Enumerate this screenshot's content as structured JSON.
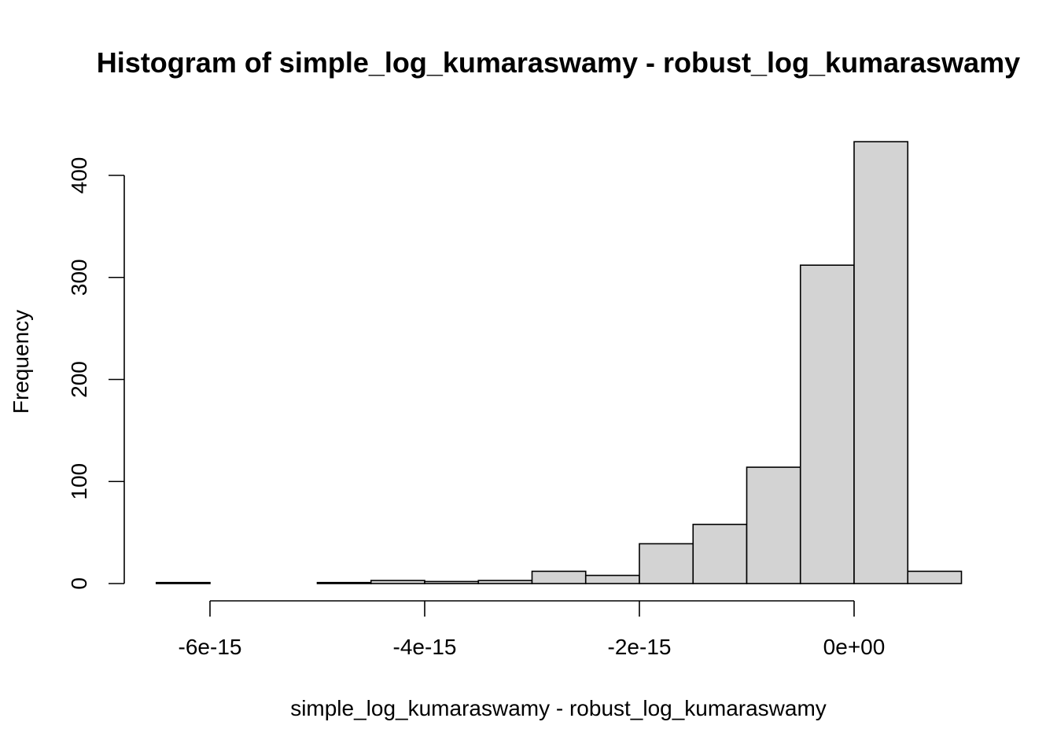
{
  "chart_data": {
    "type": "bar",
    "title": "Histogram of simple_log_kumaraswamy - robust_log_kumaraswamy",
    "xlabel": "simple_log_kumaraswamy - robust_log_kumaraswamy",
    "ylabel": "Frequency",
    "bin_edges": [
      -6.5e-15,
      -6e-15,
      -5.5e-15,
      -5e-15,
      -4.5e-15,
      -4e-15,
      -3.5e-15,
      -3e-15,
      -2.5e-15,
      -2e-15,
      -1.5e-15,
      -1e-15,
      -5e-16,
      0,
      5e-16,
      1e-15
    ],
    "values": [
      1,
      0,
      0,
      1,
      3,
      2,
      3,
      12,
      8,
      39,
      58,
      114,
      312,
      433,
      12
    ],
    "x_ticks": [
      -6e-15,
      -4e-15,
      -2e-15,
      0
    ],
    "x_tick_labels": [
      "-6e-15",
      "-4e-15",
      "-2e-15",
      "0e+00"
    ],
    "y_ticks": [
      0,
      100,
      200,
      300,
      400
    ],
    "y_tick_labels": [
      "0",
      "100",
      "200",
      "300",
      "400"
    ],
    "ylim": [
      0,
      433
    ],
    "grid": false,
    "colors": {
      "bar_fill": "#d3d3d3",
      "bar_stroke": "#000000",
      "axis": "#000000"
    }
  }
}
